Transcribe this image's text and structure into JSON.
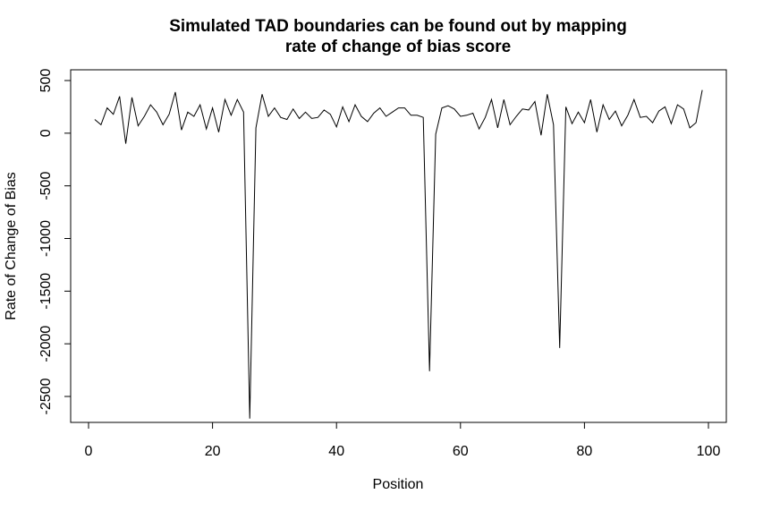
{
  "chart_data": {
    "type": "line",
    "title": "Simulated TAD boundaries can be found out by mapping",
    "subtitle": "rate of change of bias score",
    "xlabel": "Position",
    "ylabel": "Rate of Change of Bias",
    "xlim": [
      0,
      100
    ],
    "ylim": [
      -2750,
      500
    ],
    "x_ticks": [
      0,
      20,
      40,
      60,
      80,
      100
    ],
    "y_ticks": [
      500,
      0,
      -500,
      -1000,
      -1500,
      -2000,
      -2500
    ],
    "grid": false,
    "legend": "none",
    "line_color": "#000000",
    "series": [
      {
        "x": [
          1,
          2,
          3,
          4,
          5,
          6,
          7,
          8,
          9,
          10,
          11,
          12,
          13,
          14,
          15,
          16,
          17,
          18,
          19,
          20,
          21,
          22,
          23,
          24,
          25,
          26,
          27,
          28,
          29,
          30,
          31,
          32,
          33,
          34,
          35,
          36,
          37,
          38,
          39,
          40,
          41,
          42,
          43,
          44,
          45,
          46,
          47,
          48,
          49,
          50,
          51,
          52,
          53,
          54,
          55,
          56,
          57,
          58,
          59,
          60,
          61,
          62,
          63,
          64,
          65,
          66,
          67,
          68,
          69,
          70,
          71,
          72,
          73,
          74,
          75,
          76,
          77,
          78,
          79,
          80,
          81,
          82,
          83,
          84,
          85,
          86,
          87,
          88,
          89,
          90,
          91,
          92,
          93,
          94,
          95,
          96,
          97,
          98,
          99
        ],
        "values": [
          130,
          80,
          240,
          180,
          350,
          -100,
          340,
          70,
          160,
          270,
          200,
          80,
          180,
          390,
          30,
          200,
          160,
          270,
          40,
          240,
          10,
          320,
          170,
          320,
          200,
          -2710,
          50,
          370,
          160,
          240,
          150,
          130,
          230,
          140,
          200,
          140,
          150,
          220,
          180,
          60,
          250,
          110,
          270,
          160,
          110,
          190,
          240,
          160,
          200,
          240,
          240,
          170,
          170,
          150,
          -2260,
          -10,
          240,
          260,
          230,
          160,
          170,
          190,
          40,
          150,
          320,
          50,
          320,
          80,
          160,
          230,
          220,
          300,
          -20,
          370,
          80,
          -2040,
          250,
          90,
          200,
          100,
          320,
          10,
          270,
          130,
          210,
          70,
          170,
          320,
          150,
          160,
          100,
          210,
          250,
          90,
          270,
          230,
          50,
          100,
          410
        ]
      }
    ]
  }
}
